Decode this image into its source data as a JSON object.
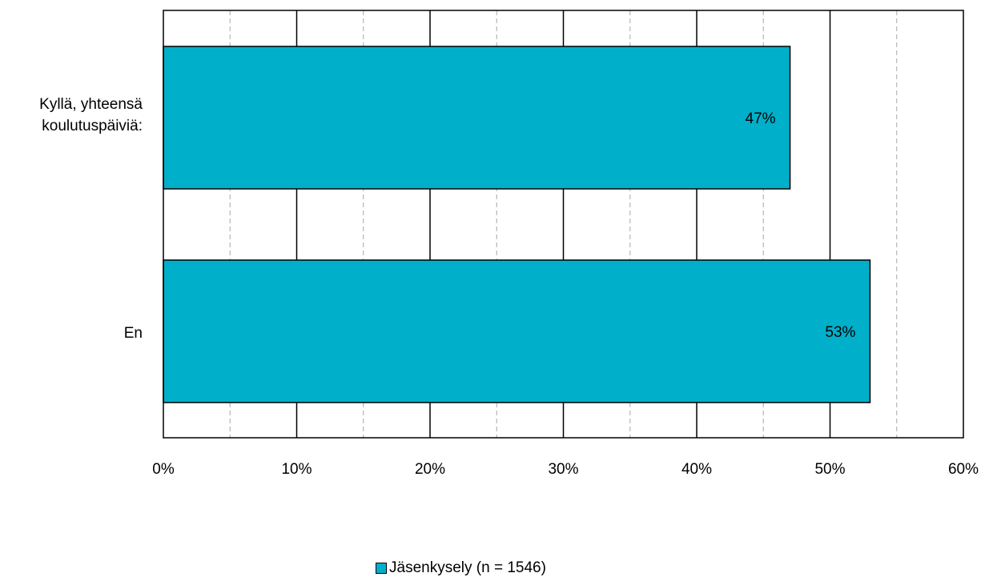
{
  "chart_data": {
    "type": "bar",
    "orientation": "horizontal",
    "categories": [
      "Kyllä, yhteensä koulutuspäiviä:",
      "En"
    ],
    "category_lines": [
      [
        "Kyllä, yhteensä",
        "koulutuspäiviä:"
      ],
      [
        "En"
      ]
    ],
    "series": [
      {
        "name": "Jäsenkysely (n = 1546)",
        "values": [
          47,
          53
        ],
        "data_labels": [
          "47%",
          "53%"
        ],
        "color": "#00AFCA"
      }
    ],
    "xlim": [
      0,
      60
    ],
    "x_ticks": [
      0,
      10,
      20,
      30,
      40,
      50,
      60
    ],
    "x_tick_labels": [
      "0%",
      "10%",
      "20%",
      "30%",
      "40%",
      "50%",
      "60%"
    ],
    "minor_gridlines": [
      5,
      15,
      25,
      35,
      45,
      55
    ],
    "grid": true,
    "legend_position": "bottom",
    "title": "",
    "xlabel": "",
    "ylabel": ""
  },
  "legend": {
    "label": "Jäsenkysely (n = 1546)",
    "color": "#00AFCA"
  }
}
